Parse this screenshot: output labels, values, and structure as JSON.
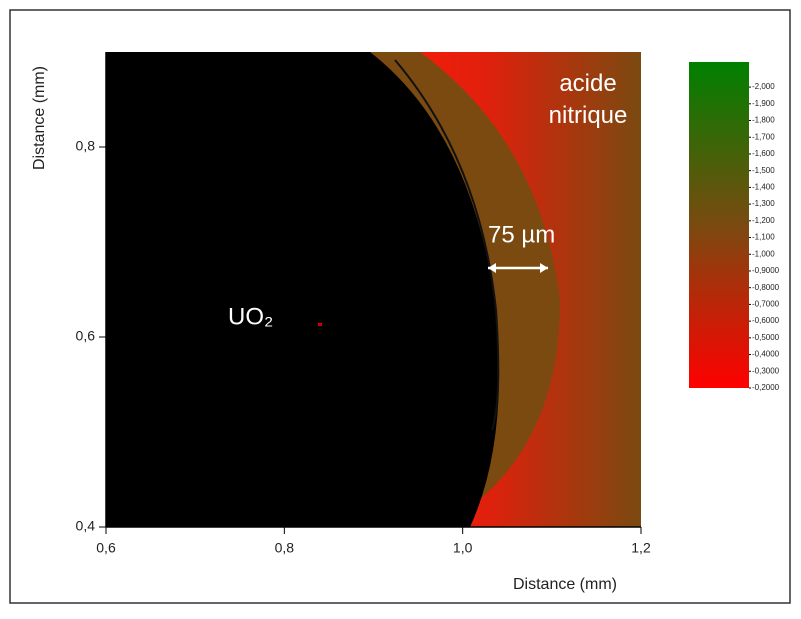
{
  "chart_data": {
    "type": "heatmap",
    "xlabel": "Distance (mm)",
    "ylabel": "Distance (mm)",
    "xlim": [
      0.6,
      1.2
    ],
    "ylim": [
      0.4,
      0.9
    ],
    "xticks": [
      {
        "value": 0.6,
        "label": "0,6"
      },
      {
        "value": 0.8,
        "label": "0,8"
      },
      {
        "value": 1.0,
        "label": "1,0"
      },
      {
        "value": 1.2,
        "label": "1,2"
      }
    ],
    "yticks": [
      {
        "value": 0.4,
        "label": "0,4"
      },
      {
        "value": 0.6,
        "label": "0,6"
      },
      {
        "value": 0.8,
        "label": "0,8"
      }
    ],
    "colormap": [
      "#ff0000",
      "#7a4a10",
      "#008000"
    ],
    "clim": [
      -2.15,
      -0.2
    ],
    "cticks": [
      {
        "value": -2.0,
        "label": "-2,000"
      },
      {
        "value": -1.9,
        "label": "-1,900"
      },
      {
        "value": -1.8,
        "label": "-1,800"
      },
      {
        "value": -1.7,
        "label": "-1,700"
      },
      {
        "value": -1.6,
        "label": "-1,600"
      },
      {
        "value": -1.5,
        "label": "-1,500"
      },
      {
        "value": -1.4,
        "label": "-1,400"
      },
      {
        "value": -1.3,
        "label": "-1,300"
      },
      {
        "value": -1.2,
        "label": "-1,200"
      },
      {
        "value": -1.1,
        "label": "-1,100"
      },
      {
        "value": -1.0,
        "label": "-1,000"
      },
      {
        "value": -0.9,
        "label": "-0,9000"
      },
      {
        "value": -0.8,
        "label": "-0,8000"
      },
      {
        "value": -0.7,
        "label": "-0,7000"
      },
      {
        "value": -0.6,
        "label": "-0,6000"
      },
      {
        "value": -0.5,
        "label": "-0,5000"
      },
      {
        "value": -0.4,
        "label": "-0,4000"
      },
      {
        "value": -0.3,
        "label": "-0,3000"
      },
      {
        "value": -0.2,
        "label": "-0,2000"
      }
    ],
    "annotations": [
      "acide nitrique",
      "75 µm",
      "UO₂"
    ]
  }
}
